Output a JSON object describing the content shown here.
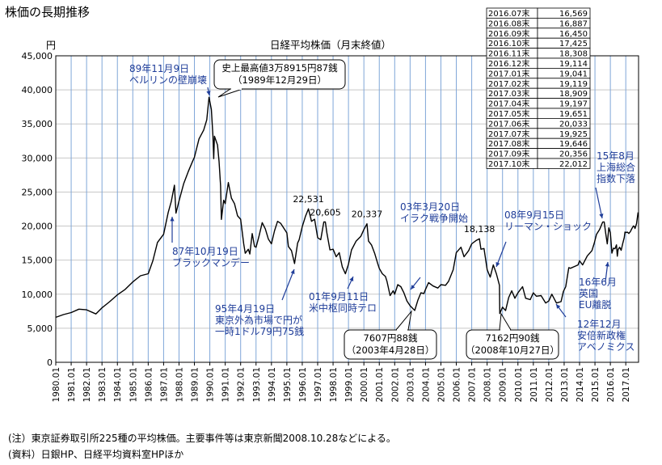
{
  "page_title": "株価の長期推移",
  "footnotes": {
    "note": "(注）東京証券取引所225種の平均株価。主要事件等は東京新聞2008.10.28などによる。",
    "source": "(資料）日銀HP、日経平均資料室HPほか"
  },
  "chart_data": {
    "type": "line",
    "title": "日経平均株価（月末終値）",
    "ylabel": "円",
    "xlabel": "",
    "ylim": [
      0,
      45000
    ],
    "xlim": [
      1980.0,
      2017.83
    ],
    "yticks": [
      "0",
      "5,000",
      "10,000",
      "15,000",
      "20,000",
      "25,000",
      "30,000",
      "35,000",
      "40,000",
      "45,000"
    ],
    "xticks": [
      "1980.01",
      "1981.01",
      "1982.01",
      "1983.01",
      "1984.01",
      "1985.01",
      "1986.01",
      "1987.01",
      "1988.01",
      "1989.01",
      "1990.01",
      "1991.01",
      "1992.01",
      "1993.01",
      "1994.01",
      "1995.01",
      "1996.01",
      "1997.01",
      "1998.01",
      "1999.01",
      "2000.01",
      "2001.01",
      "2002.01",
      "2003.01",
      "2004.01",
      "2005.01",
      "2006.01",
      "2007.01",
      "2008.01",
      "2009.01",
      "2010.01",
      "2011.01",
      "2012.01",
      "2013.01",
      "2014.01",
      "2015.01",
      "2016.01",
      "2017.01"
    ],
    "grid": true,
    "series": [
      {
        "color": "#000000",
        "points": [
          [
            1980.0,
            6600
          ],
          [
            1980.5,
            7000
          ],
          [
            1981.0,
            7300
          ],
          [
            1981.5,
            7800
          ],
          [
            1982.0,
            7700
          ],
          [
            1982.6,
            7100
          ],
          [
            1983.0,
            8000
          ],
          [
            1983.5,
            8900
          ],
          [
            1984.0,
            9900
          ],
          [
            1984.5,
            10700
          ],
          [
            1985.0,
            11800
          ],
          [
            1985.5,
            12700
          ],
          [
            1986.0,
            13000
          ],
          [
            1986.3,
            14900
          ],
          [
            1986.6,
            17600
          ],
          [
            1987.0,
            18800
          ],
          [
            1987.3,
            22000
          ],
          [
            1987.5,
            23600
          ],
          [
            1987.7,
            26000
          ],
          [
            1987.8,
            21900
          ],
          [
            1988.0,
            23700
          ],
          [
            1988.3,
            26200
          ],
          [
            1988.6,
            28000
          ],
          [
            1988.9,
            29600
          ],
          [
            1989.0,
            30100
          ],
          [
            1989.3,
            32800
          ],
          [
            1989.6,
            34100
          ],
          [
            1989.8,
            35600
          ],
          [
            1989.95,
            38916
          ],
          [
            1990.1,
            37100
          ],
          [
            1990.2,
            33300
          ],
          [
            1990.25,
            29900
          ],
          [
            1990.3,
            33200
          ],
          [
            1990.5,
            31900
          ],
          [
            1990.6,
            29500
          ],
          [
            1990.7,
            25900
          ],
          [
            1990.75,
            20983
          ],
          [
            1990.9,
            23800
          ],
          [
            1991.0,
            23300
          ],
          [
            1991.2,
            26400
          ],
          [
            1991.4,
            24100
          ],
          [
            1991.6,
            23300
          ],
          [
            1991.8,
            21500
          ],
          [
            1992.0,
            21000
          ],
          [
            1992.2,
            17400
          ],
          [
            1992.3,
            16000
          ],
          [
            1992.5,
            16600
          ],
          [
            1992.6,
            15900
          ],
          [
            1992.75,
            18900
          ],
          [
            1992.9,
            17000
          ],
          [
            1993.0,
            16900
          ],
          [
            1993.2,
            18600
          ],
          [
            1993.4,
            20500
          ],
          [
            1993.6,
            19600
          ],
          [
            1993.8,
            18100
          ],
          [
            1994.0,
            17400
          ],
          [
            1994.2,
            19300
          ],
          [
            1994.4,
            20700
          ],
          [
            1994.6,
            20400
          ],
          [
            1994.8,
            19700
          ],
          [
            1995.0,
            19000
          ],
          [
            1995.1,
            17000
          ],
          [
            1995.3,
            16400
          ],
          [
            1995.5,
            14500
          ],
          [
            1995.7,
            17500
          ],
          [
            1995.8,
            18000
          ],
          [
            1996.0,
            19900
          ],
          [
            1996.2,
            21400
          ],
          [
            1996.4,
            22531
          ],
          [
            1996.6,
            20700
          ],
          [
            1996.8,
            21000
          ],
          [
            1997.0,
            18300
          ],
          [
            1997.2,
            18000
          ],
          [
            1997.4,
            20600
          ],
          [
            1997.5,
            20605
          ],
          [
            1997.6,
            19000
          ],
          [
            1997.8,
            16500
          ],
          [
            1998.0,
            16600
          ],
          [
            1998.2,
            15500
          ],
          [
            1998.4,
            16100
          ],
          [
            1998.6,
            14000
          ],
          [
            1998.8,
            13000
          ],
          [
            1999.0,
            14400
          ],
          [
            1999.2,
            16500
          ],
          [
            1999.5,
            17800
          ],
          [
            1999.8,
            18500
          ],
          [
            2000.0,
            19500
          ],
          [
            2000.2,
            20337
          ],
          [
            2000.3,
            17800
          ],
          [
            2000.5,
            17200
          ],
          [
            2000.7,
            16000
          ],
          [
            2000.9,
            14500
          ],
          [
            2001.0,
            13800
          ],
          [
            2001.2,
            13000
          ],
          [
            2001.4,
            12600
          ],
          [
            2001.5,
            11860
          ],
          [
            2001.7,
            9800
          ],
          [
            2001.9,
            10500
          ],
          [
            2002.0,
            10000
          ],
          [
            2002.2,
            11400
          ],
          [
            2002.4,
            11100
          ],
          [
            2002.6,
            10200
          ],
          [
            2002.8,
            9000
          ],
          [
            2003.0,
            8300
          ],
          [
            2003.3,
            7607
          ],
          [
            2003.5,
            9100
          ],
          [
            2003.7,
            10200
          ],
          [
            2003.9,
            10100
          ],
          [
            2004.0,
            10700
          ],
          [
            2004.2,
            11700
          ],
          [
            2004.5,
            11200
          ],
          [
            2004.8,
            10900
          ],
          [
            2005.0,
            11400
          ],
          [
            2005.3,
            11300
          ],
          [
            2005.5,
            11900
          ],
          [
            2005.8,
            13600
          ],
          [
            2006.0,
            16100
          ],
          [
            2006.3,
            16900
          ],
          [
            2006.5,
            15500
          ],
          [
            2006.8,
            16400
          ],
          [
            2007.0,
            17400
          ],
          [
            2007.3,
            17900
          ],
          [
            2007.5,
            18138
          ],
          [
            2007.6,
            16600
          ],
          [
            2007.8,
            16700
          ],
          [
            2008.0,
            13600
          ],
          [
            2008.2,
            12500
          ],
          [
            2008.4,
            14300
          ],
          [
            2008.6,
            13000
          ],
          [
            2008.8,
            11300
          ],
          [
            2008.82,
            7162
          ],
          [
            2009.0,
            8100
          ],
          [
            2009.2,
            7600
          ],
          [
            2009.4,
            9500
          ],
          [
            2009.6,
            10500
          ],
          [
            2009.8,
            9400
          ],
          [
            2010.0,
            10200
          ],
          [
            2010.3,
            11100
          ],
          [
            2010.5,
            9400
          ],
          [
            2010.8,
            9200
          ],
          [
            2011.0,
            10200
          ],
          [
            2011.2,
            9700
          ],
          [
            2011.5,
            9800
          ],
          [
            2011.8,
            8700
          ],
          [
            2012.0,
            9000
          ],
          [
            2012.2,
            10000
          ],
          [
            2012.5,
            8700
          ],
          [
            2012.8,
            8900
          ],
          [
            2012.95,
            10400
          ],
          [
            2013.1,
            11100
          ],
          [
            2013.3,
            13900
          ],
          [
            2013.4,
            13800
          ],
          [
            2013.6,
            14000
          ],
          [
            2013.9,
            14300
          ],
          [
            2014.0,
            14900
          ],
          [
            2014.2,
            14300
          ],
          [
            2014.5,
            15600
          ],
          [
            2014.8,
            16400
          ],
          [
            2014.95,
            17450
          ],
          [
            2015.1,
            18800
          ],
          [
            2015.3,
            19500
          ],
          [
            2015.5,
            20585
          ],
          [
            2015.6,
            20600
          ],
          [
            2015.7,
            18890
          ],
          [
            2015.8,
            17388
          ],
          [
            2015.9,
            19747
          ],
          [
            2016.0,
            19033
          ],
          [
            2016.05,
            17518
          ],
          [
            2016.1,
            16027
          ],
          [
            2016.2,
            16758
          ],
          [
            2016.3,
            16667
          ],
          [
            2016.4,
            17235
          ],
          [
            2016.45,
            15576
          ],
          [
            2016.5,
            16569
          ],
          [
            2016.6,
            16887
          ],
          [
            2016.7,
            16450
          ],
          [
            2016.8,
            17425
          ],
          [
            2016.9,
            18308
          ],
          [
            2016.95,
            19114
          ],
          [
            2017.0,
            19041
          ],
          [
            2017.1,
            19119
          ],
          [
            2017.2,
            18909
          ],
          [
            2017.3,
            19197
          ],
          [
            2017.4,
            19651
          ],
          [
            2017.5,
            20033
          ],
          [
            2017.55,
            19925
          ],
          [
            2017.6,
            19646
          ],
          [
            2017.7,
            20356
          ],
          [
            2017.8,
            22012
          ]
        ]
      }
    ],
    "value_table": [
      [
        "2016.07末",
        "16,569"
      ],
      [
        "2016.08末",
        "16,887"
      ],
      [
        "2016.09末",
        "16,450"
      ],
      [
        "2016.10末",
        "17,425"
      ],
      [
        "2016.11末",
        "18,308"
      ],
      [
        "2016.12末",
        "19,114"
      ],
      [
        "2017.01末",
        "19,041"
      ],
      [
        "2017.02末",
        "19,119"
      ],
      [
        "2017.03末",
        "18,909"
      ],
      [
        "2017.04末",
        "19,197"
      ],
      [
        "2017.05末",
        "19,651"
      ],
      [
        "2017.06末",
        "20,033"
      ],
      [
        "2017.07末",
        "19,925"
      ],
      [
        "2017.08末",
        "19,646"
      ],
      [
        "2017.09末",
        "20,356"
      ],
      [
        "2017.10末",
        "22,012"
      ]
    ],
    "value_labels": [
      {
        "text": "22,531",
        "x": 1996.4,
        "y": 22531
      },
      {
        "text": "20,605",
        "x": 1997.5,
        "y": 20605
      },
      {
        "text": "20,337",
        "x": 2000.2,
        "y": 20337
      },
      {
        "text": "18,138",
        "x": 2007.5,
        "y": 18138
      }
    ],
    "annotations": [
      {
        "lines": [
          "89年11月9日",
          "ベルリンの壁崩壊"
        ],
        "color": "#1f3d99"
      },
      {
        "lines": [
          "87年10月19日",
          "ブラックマンデー"
        ],
        "color": "#1f3d99"
      },
      {
        "lines": [
          "95年4月19日",
          "東京外為市場で円が",
          "一時1ドル79円75銭"
        ],
        "color": "#1f3d99"
      },
      {
        "lines": [
          "01年9月11日",
          "米中枢同時テロ"
        ],
        "color": "#1f3d99"
      },
      {
        "lines": [
          "03年3月20日",
          "イラク戦争開始"
        ],
        "color": "#1f3d99"
      },
      {
        "lines": [
          "08年9月15日",
          "リーマン・ショック"
        ],
        "color": "#1f3d99"
      },
      {
        "lines": [
          "15年8月",
          "上海総合",
          "指数下落"
        ],
        "color": "#1f3d99"
      },
      {
        "lines": [
          "16年6月",
          "英国",
          "EU離脱"
        ],
        "color": "#1f3d99"
      },
      {
        "lines": [
          "12年12月",
          "安倍新政権",
          "アベノミクス"
        ],
        "color": "#1f3d99"
      }
    ],
    "callouts": [
      {
        "lines": [
          "史上最高値3万8915円87銭",
          "（1989年12月29日）"
        ]
      },
      {
        "lines": [
          "7607円88銭",
          "（2003年4月28日）"
        ]
      },
      {
        "lines": [
          "7162円90銭",
          "（2008年10月27日）"
        ]
      }
    ]
  }
}
